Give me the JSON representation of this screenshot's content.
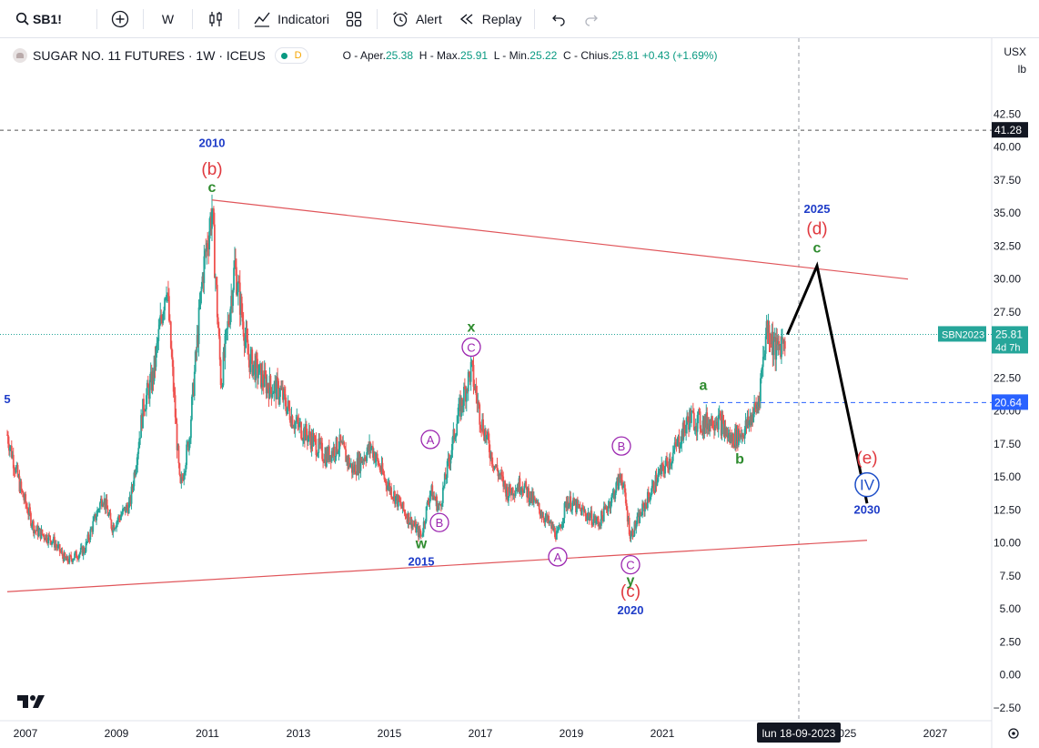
{
  "toolbar": {
    "symbol": "SB1!",
    "interval": "W",
    "indicators_label": "Indicatori",
    "alert_label": "Alert",
    "replay_label": "Replay"
  },
  "legend": {
    "title": "SUGAR NO. 11 FUTURES · 1W · ICEUS",
    "flag": "D",
    "o_label": "O - Aper.",
    "o_value": "25.38",
    "h_label": "H - Max.",
    "h_value": "25.91",
    "l_label": "L - Min.",
    "l_value": "25.22",
    "c_label": "C - Chius.",
    "c_value": "25.81",
    "change": "+0.43 (+1.69%)"
  },
  "scale": {
    "currency": "USX",
    "unit": "lb"
  },
  "price_labels": {
    "resistance": "41.28",
    "last_symbol": "SBN2023",
    "last_value": "25.81",
    "countdown": "4d 7h",
    "hline": "20.64"
  },
  "crosshair_date": "lun 18-09-2023",
  "colors": {
    "up": "#26a69a",
    "down": "#ef5350",
    "trendline": "#e0555a",
    "wave_red": "#e0383e",
    "wave_green": "#2e8b2e",
    "wave_purple": "#9c27b0",
    "year_blue": "#1e3cc8",
    "roman_blue": "#1f50c8",
    "projection": "#000000",
    "accent_teal": "#26a69a",
    "axis_label_dark": "#131722"
  },
  "chart_data": {
    "type": "candlestick",
    "timeframe": "1W",
    "x_axis_ticks": [
      "2007",
      "2009",
      "2011",
      "2013",
      "2015",
      "2017",
      "2019",
      "2021",
      "2025",
      "2027"
    ],
    "y_axis_ticks": [
      "42.50",
      "40.00",
      "37.50",
      "35.00",
      "32.50",
      "30.00",
      "27.50",
      "22.50",
      "20.00",
      "17.50",
      "15.00",
      "12.50",
      "10.00",
      "7.50",
      "5.00",
      "2.50",
      "0.00",
      "−2.50"
    ],
    "ylim": [
      -3.2,
      45.5
    ],
    "xlim": [
      2006.6,
      2028.2
    ],
    "price_path": [
      [
        2006.6,
        18.2
      ],
      [
        2006.9,
        14.0
      ],
      [
        2007.2,
        11.0
      ],
      [
        2007.6,
        10.2
      ],
      [
        2007.9,
        8.6
      ],
      [
        2008.3,
        9.5
      ],
      [
        2008.7,
        13.6
      ],
      [
        2008.9,
        11.2
      ],
      [
        2009.3,
        13.0
      ],
      [
        2009.6,
        20.5
      ],
      [
        2009.8,
        22.5
      ],
      [
        2010.1,
        29.9
      ],
      [
        2010.4,
        14.0
      ],
      [
        2010.6,
        18.0
      ],
      [
        2010.9,
        30.5
      ],
      [
        2011.1,
        35.3
      ],
      [
        2011.3,
        22.0
      ],
      [
        2011.6,
        31.0
      ],
      [
        2011.9,
        24.0
      ],
      [
        2012.3,
        22.0
      ],
      [
        2012.6,
        21.5
      ],
      [
        2012.9,
        19.2
      ],
      [
        2013.3,
        17.8
      ],
      [
        2013.6,
        16.5
      ],
      [
        2013.9,
        17.5
      ],
      [
        2014.2,
        15.5
      ],
      [
        2014.6,
        17.3
      ],
      [
        2014.9,
        14.8
      ],
      [
        2015.3,
        12.5
      ],
      [
        2015.7,
        10.5
      ],
      [
        2015.9,
        14.0
      ],
      [
        2016.1,
        12.6
      ],
      [
        2016.5,
        19.5
      ],
      [
        2016.8,
        23.2
      ],
      [
        2017.0,
        19.5
      ],
      [
        2017.3,
        16.0
      ],
      [
        2017.6,
        13.8
      ],
      [
        2017.9,
        14.5
      ],
      [
        2018.3,
        12.5
      ],
      [
        2018.7,
        10.5
      ],
      [
        2018.9,
        13.2
      ],
      [
        2019.2,
        12.5
      ],
      [
        2019.6,
        11.5
      ],
      [
        2019.9,
        13.5
      ],
      [
        2020.1,
        15.2
      ],
      [
        2020.3,
        10.5
      ],
      [
        2020.5,
        12.0
      ],
      [
        2020.9,
        15.0
      ],
      [
        2021.2,
        16.5
      ],
      [
        2021.6,
        19.5
      ],
      [
        2021.9,
        19.0
      ],
      [
        2022.2,
        19.5
      ],
      [
        2022.5,
        17.8
      ],
      [
        2022.8,
        18.5
      ],
      [
        2023.1,
        20.5
      ],
      [
        2023.3,
        26.5
      ],
      [
        2023.5,
        24.5
      ],
      [
        2023.7,
        25.8
      ]
    ],
    "last_close": 25.81,
    "annotations": {
      "resistance_line": {
        "value": 41.28,
        "style": "dashed"
      },
      "support_line": {
        "value": 20.64,
        "style": "dashed"
      },
      "last_price_line": {
        "value": 25.81,
        "style": "dotted"
      },
      "trendline_upper": {
        "from": [
          2011.1,
          36.0
        ],
        "to": [
          2026.4,
          30.0
        ]
      },
      "trendline_lower": {
        "from": [
          2006.6,
          6.3
        ],
        "to": [
          2025.5,
          10.2
        ]
      },
      "projection": [
        [
          2023.75,
          25.8
        ],
        [
          2024.4,
          31.0
        ],
        [
          2025.5,
          13.0
        ]
      ],
      "crosshair_x": 2024.0,
      "wave_labels": [
        {
          "text": "2010",
          "x": 2011.1,
          "y": 40.0,
          "role": "year"
        },
        {
          "text": "(b)",
          "x": 2011.1,
          "y": 37.9,
          "role": "wave_red"
        },
        {
          "text": "c",
          "x": 2011.1,
          "y": 36.6,
          "role": "wave_green"
        },
        {
          "text": "x",
          "x": 2016.8,
          "y": 26.0,
          "role": "wave_green"
        },
        {
          "text": "C",
          "x": 2016.8,
          "y": 24.5,
          "role": "wave_purple_circle"
        },
        {
          "text": "A",
          "x": 2015.9,
          "y": 17.5,
          "role": "wave_purple_circle"
        },
        {
          "text": "B",
          "x": 2016.1,
          "y": 11.2,
          "role": "wave_purple_circle"
        },
        {
          "text": "w",
          "x": 2015.7,
          "y": 9.6,
          "role": "wave_green"
        },
        {
          "text": "2015",
          "x": 2015.7,
          "y": 8.3,
          "role": "year"
        },
        {
          "text": "B",
          "x": 2020.1,
          "y": 17.0,
          "role": "wave_purple_circle"
        },
        {
          "text": "A",
          "x": 2018.7,
          "y": 8.6,
          "role": "wave_purple_circle"
        },
        {
          "text": "C",
          "x": 2020.3,
          "y": 8.0,
          "role": "wave_purple_circle"
        },
        {
          "text": "y",
          "x": 2020.3,
          "y": 6.8,
          "role": "wave_green"
        },
        {
          "text": "(c)",
          "x": 2020.3,
          "y": 5.9,
          "role": "wave_red"
        },
        {
          "text": "2020",
          "x": 2020.3,
          "y": 4.6,
          "role": "year"
        },
        {
          "text": "a",
          "x": 2021.9,
          "y": 21.6,
          "role": "wave_green"
        },
        {
          "text": "b",
          "x": 2022.7,
          "y": 16.0,
          "role": "wave_green"
        },
        {
          "text": "2025",
          "x": 2024.4,
          "y": 35.0,
          "role": "year"
        },
        {
          "text": "(d)",
          "x": 2024.4,
          "y": 33.4,
          "role": "wave_red"
        },
        {
          "text": "c",
          "x": 2024.4,
          "y": 32.0,
          "role": "wave_green"
        },
        {
          "text": "(e)",
          "x": 2025.5,
          "y": 16.0,
          "role": "wave_red"
        },
        {
          "text": "IV",
          "x": 2025.5,
          "y": 14.0,
          "role": "roman_circle"
        },
        {
          "text": "2030",
          "x": 2025.5,
          "y": 12.2,
          "role": "year"
        },
        {
          "text": "5",
          "x": 2006.6,
          "y": 20.6,
          "role": "year"
        }
      ]
    }
  }
}
